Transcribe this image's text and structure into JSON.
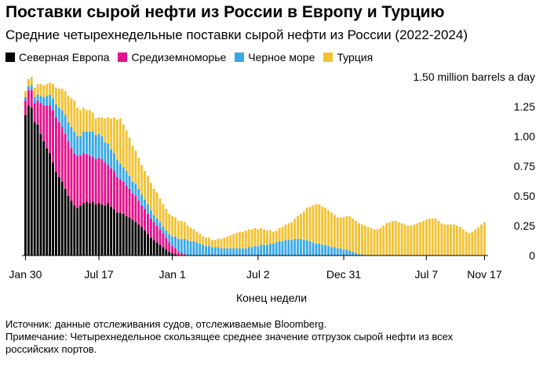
{
  "chart_data": {
    "type": "bar",
    "stacked": true,
    "title": "Поставки сырой нефти из России в Европу и Турцию",
    "subtitle": "Средние четырехнедельные поставки сырой нефти из России (2022-2024)",
    "xlabel": "Конец недели",
    "ylabel": "million barrels a day",
    "ylim": [
      0,
      1.5
    ],
    "y_ticks": [
      "1.50 million barrels a day",
      "1.25",
      "1.00",
      "0.75",
      "0.50",
      "0.25",
      "0"
    ],
    "y_tick_values": [
      1.5,
      1.25,
      1.0,
      0.75,
      0.5,
      0.25,
      0
    ],
    "x_tick_labels": [
      "Jan 30",
      "Jul 17",
      "Jan 1",
      "Jul 2",
      "Dec 31",
      "Jul 7",
      "Nov 17"
    ],
    "x_tick_index": [
      0,
      24,
      48,
      76,
      104,
      131,
      150
    ],
    "legend_position": "top-left",
    "series": [
      {
        "name": "Северная Европа",
        "color": "#000000",
        "values": [
          1.18,
          1.26,
          1.24,
          1.12,
          1.1,
          1.02,
          0.96,
          0.9,
          0.86,
          0.78,
          0.7,
          0.66,
          0.62,
          0.56,
          0.5,
          0.46,
          0.42,
          0.4,
          0.42,
          0.44,
          0.45,
          0.44,
          0.45,
          0.43,
          0.44,
          0.43,
          0.42,
          0.44,
          0.41,
          0.39,
          0.36,
          0.36,
          0.35,
          0.33,
          0.32,
          0.3,
          0.28,
          0.26,
          0.24,
          0.21,
          0.18,
          0.15,
          0.13,
          0.11,
          0.09,
          0.07,
          0.05,
          0.03,
          0.02,
          0.01,
          0,
          0,
          0,
          0,
          0,
          0,
          0,
          0,
          0,
          0,
          0,
          0,
          0,
          0,
          0,
          0,
          0,
          0,
          0,
          0,
          0,
          0,
          0,
          0,
          0,
          0,
          0,
          0,
          0,
          0,
          0,
          0,
          0,
          0,
          0,
          0,
          0,
          0,
          0,
          0,
          0,
          0,
          0,
          0,
          0,
          0,
          0,
          0,
          0,
          0,
          0,
          0,
          0,
          0,
          0,
          0,
          0,
          0,
          0,
          0,
          0,
          0,
          0,
          0,
          0,
          0,
          0,
          0,
          0,
          0,
          0,
          0,
          0,
          0,
          0,
          0,
          0,
          0,
          0,
          0,
          0,
          0,
          0,
          0,
          0,
          0,
          0,
          0,
          0,
          0,
          0,
          0,
          0,
          0,
          0,
          0,
          0,
          0,
          0,
          0,
          0
        ]
      },
      {
        "name": "Средиземноморье",
        "color": "#e5118c",
        "values": [
          0.12,
          0.13,
          0.15,
          0.16,
          0.2,
          0.26,
          0.3,
          0.36,
          0.4,
          0.44,
          0.46,
          0.46,
          0.46,
          0.46,
          0.46,
          0.44,
          0.44,
          0.44,
          0.42,
          0.42,
          0.4,
          0.4,
          0.38,
          0.38,
          0.38,
          0.38,
          0.36,
          0.32,
          0.32,
          0.32,
          0.3,
          0.28,
          0.27,
          0.26,
          0.24,
          0.22,
          0.22,
          0.2,
          0.18,
          0.18,
          0.17,
          0.16,
          0.15,
          0.14,
          0.13,
          0.12,
          0.1,
          0.08,
          0.06,
          0.05,
          0.03,
          0.02,
          0.01,
          0,
          0,
          0,
          0,
          0,
          0,
          0,
          0,
          0,
          0,
          0,
          0,
          0,
          0,
          0,
          0,
          0,
          0,
          0,
          0,
          0,
          0,
          0,
          0,
          0,
          0,
          0,
          0,
          0,
          0,
          0,
          0,
          0,
          0,
          0,
          0,
          0,
          0,
          0,
          0,
          0,
          0,
          0,
          0,
          0,
          0,
          0,
          0,
          0,
          0,
          0,
          0,
          0,
          0,
          0,
          0,
          0,
          0,
          0,
          0,
          0,
          0,
          0,
          0,
          0,
          0,
          0,
          0,
          0,
          0,
          0,
          0,
          0,
          0,
          0,
          0,
          0,
          0,
          0,
          0,
          0,
          0,
          0,
          0,
          0,
          0,
          0,
          0,
          0,
          0,
          0,
          0,
          0,
          0,
          0,
          0,
          0,
          0,
          0,
          0
        ]
      },
      {
        "name": "Черное море",
        "color": "#38a8eb",
        "values": [
          0.03,
          0.03,
          0.04,
          0.05,
          0.05,
          0.06,
          0.07,
          0.08,
          0.09,
          0.1,
          0.11,
          0.12,
          0.14,
          0.16,
          0.16,
          0.18,
          0.18,
          0.16,
          0.16,
          0.18,
          0.19,
          0.2,
          0.21,
          0.2,
          0.2,
          0.19,
          0.17,
          0.18,
          0.16,
          0.15,
          0.14,
          0.13,
          0.12,
          0.12,
          0.11,
          0.1,
          0.1,
          0.1,
          0.09,
          0.08,
          0.08,
          0.07,
          0.06,
          0.06,
          0.06,
          0.05,
          0.06,
          0.07,
          0.08,
          0.1,
          0.11,
          0.12,
          0.13,
          0.13,
          0.12,
          0.12,
          0.11,
          0.1,
          0.09,
          0.08,
          0.08,
          0.07,
          0.07,
          0.07,
          0.06,
          0.06,
          0.06,
          0.06,
          0.06,
          0.06,
          0.06,
          0.06,
          0.06,
          0.07,
          0.07,
          0.08,
          0.08,
          0.09,
          0.09,
          0.09,
          0.1,
          0.1,
          0.11,
          0.12,
          0.12,
          0.13,
          0.13,
          0.13,
          0.14,
          0.14,
          0.14,
          0.13,
          0.13,
          0.12,
          0.11,
          0.1,
          0.1,
          0.09,
          0.09,
          0.08,
          0.07,
          0.07,
          0.06,
          0.06,
          0.05,
          0.05,
          0.04,
          0.03,
          0.02,
          0.01,
          0.01,
          0,
          0,
          0,
          0,
          0,
          0,
          0,
          0,
          0,
          0,
          0,
          0,
          0,
          0,
          0,
          0,
          0,
          0,
          0,
          0,
          0,
          0,
          0,
          0,
          0,
          0,
          0,
          0,
          0,
          0,
          0,
          0,
          0,
          0,
          0,
          0,
          0,
          0,
          0,
          0
        ]
      },
      {
        "name": "Турция",
        "color": "#f2c233",
        "values": [
          0.05,
          0.06,
          0.07,
          0.08,
          0.09,
          0.1,
          0.1,
          0.1,
          0.1,
          0.12,
          0.14,
          0.16,
          0.18,
          0.2,
          0.22,
          0.24,
          0.26,
          0.24,
          0.22,
          0.2,
          0.18,
          0.18,
          0.16,
          0.14,
          0.14,
          0.16,
          0.2,
          0.22,
          0.26,
          0.3,
          0.34,
          0.38,
          0.36,
          0.34,
          0.32,
          0.3,
          0.28,
          0.26,
          0.25,
          0.24,
          0.24,
          0.23,
          0.22,
          0.22,
          0.2,
          0.19,
          0.18,
          0.17,
          0.17,
          0.16,
          0.15,
          0.15,
          0.14,
          0.12,
          0.11,
          0.1,
          0.09,
          0.08,
          0.07,
          0.07,
          0.07,
          0.06,
          0.06,
          0.07,
          0.08,
          0.09,
          0.1,
          0.11,
          0.12,
          0.13,
          0.14,
          0.14,
          0.15,
          0.15,
          0.15,
          0.15,
          0.14,
          0.14,
          0.13,
          0.12,
          0.11,
          0.1,
          0.1,
          0.11,
          0.12,
          0.13,
          0.14,
          0.15,
          0.17,
          0.19,
          0.21,
          0.24,
          0.27,
          0.29,
          0.31,
          0.33,
          0.33,
          0.32,
          0.31,
          0.3,
          0.29,
          0.27,
          0.26,
          0.26,
          0.27,
          0.28,
          0.29,
          0.28,
          0.27,
          0.26,
          0.25,
          0.25,
          0.24,
          0.23,
          0.22,
          0.22,
          0.23,
          0.25,
          0.27,
          0.28,
          0.29,
          0.29,
          0.28,
          0.27,
          0.26,
          0.25,
          0.25,
          0.26,
          0.27,
          0.28,
          0.29,
          0.3,
          0.31,
          0.31,
          0.31,
          0.29,
          0.27,
          0.26,
          0.26,
          0.26,
          0.26,
          0.25,
          0.24,
          0.22,
          0.2,
          0.19,
          0.2,
          0.22,
          0.24,
          0.26,
          0.28,
          0.29,
          0.3
        ]
      }
    ]
  },
  "source": "Источник: данные отслеживания судов, отслеживаемые Bloomberg.",
  "note": "Примечание: Четырехнедельное скользящее среднее значение отгрузок сырой нефти из всех российских портов."
}
